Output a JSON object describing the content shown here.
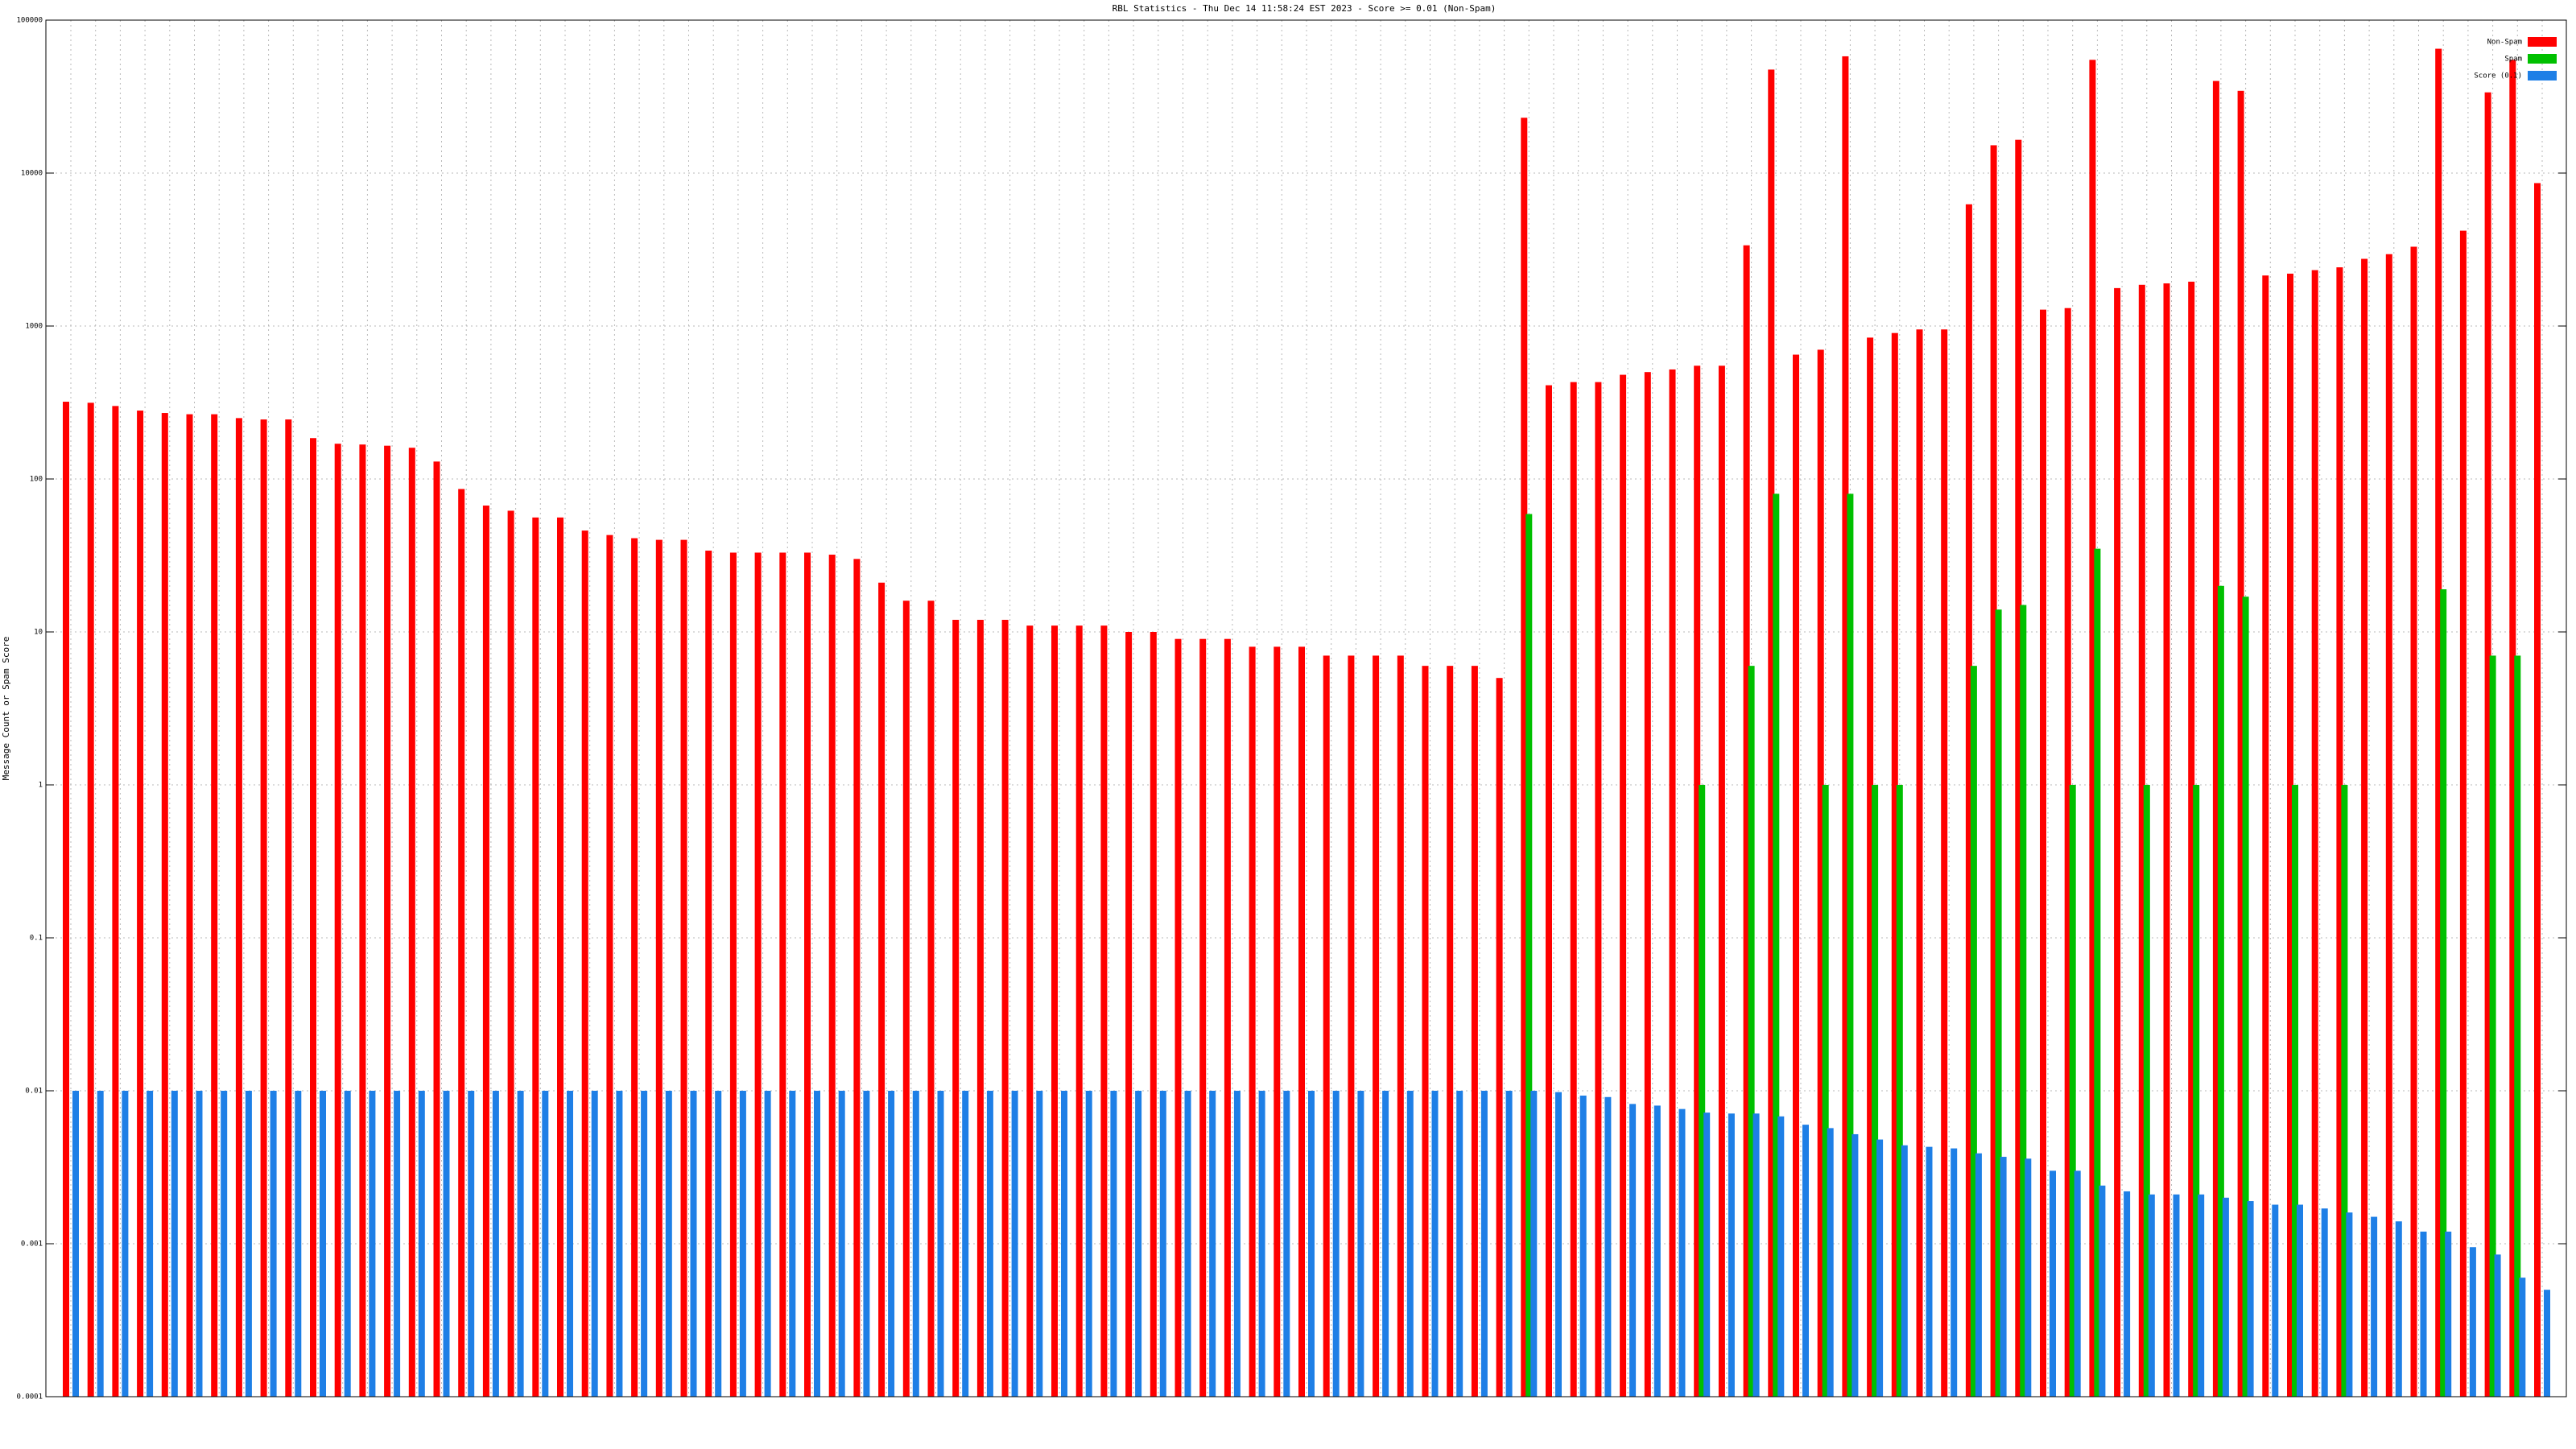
{
  "chart_data": {
    "type": "bar",
    "title": "RBL Statistics - Thu Dec 14 11:58:24 EST 2023 - Score >= 0.01 (Non-Spam)",
    "y_label": "Message Count or Spam Score",
    "log_scale": true,
    "grid": true,
    "legend": "upper right",
    "ylim": [
      0.0001,
      100000
    ],
    "yticks": [
      0.0001,
      0.001,
      0.01,
      0.1,
      1,
      10,
      100,
      1000,
      10000,
      100000
    ],
    "categories": [
      null,
      null,
      null,
      null,
      null,
      null,
      null,
      null,
      null,
      null,
      null,
      null,
      null,
      null,
      null,
      null,
      null,
      null,
      null,
      null,
      null,
      null,
      null,
      null,
      null,
      null,
      null,
      null,
      null,
      null,
      null,
      null,
      null,
      null,
      null,
      null,
      null,
      null,
      null,
      null,
      null,
      null,
      null,
      null,
      null,
      null,
      null,
      null,
      null,
      null,
      null,
      null,
      null,
      null,
      null,
      null,
      null,
      null,
      null,
      null,
      null,
      null,
      null,
      null,
      null,
      null,
      null,
      null,
      null,
      null,
      null,
      null,
      null,
      null,
      null,
      null,
      null,
      null,
      null,
      null,
      null,
      null,
      null,
      null,
      null,
      null,
      null,
      null,
      null,
      null,
      null,
      null,
      null,
      null,
      null,
      null,
      null,
      null,
      null,
      null,
      null
    ],
    "series": [
      {
        "name": "Non-Spam",
        "color": "#ff0000",
        "values": [
          320,
          315,
          300,
          280,
          270,
          265,
          265,
          250,
          245,
          245,
          185,
          170,
          168,
          165,
          160,
          130,
          86,
          67,
          62,
          56,
          56,
          46,
          43,
          41,
          40,
          40,
          34,
          33,
          33,
          33,
          33,
          32,
          30,
          21,
          16,
          16,
          12,
          12,
          12,
          11,
          11,
          11,
          11,
          10,
          10,
          9,
          9,
          9,
          8,
          8,
          8,
          7,
          7,
          7,
          7,
          6,
          6,
          6,
          5,
          23000,
          410,
          430,
          430,
          480,
          500,
          520,
          550,
          550,
          3370,
          47500,
          650,
          700,
          58000,
          840,
          900,
          950,
          950,
          6250,
          15200,
          16500,
          1280,
          1310,
          55000,
          1770,
          1860,
          1900,
          1950,
          40000,
          34500,
          2140,
          2200,
          2320,
          2420,
          2750,
          2950,
          3300,
          65000,
          4200,
          33700,
          55000,
          8600
        ]
      },
      {
        "name": "Spam",
        "color": "#00c000",
        "values": [
          null,
          null,
          null,
          null,
          null,
          null,
          null,
          null,
          null,
          null,
          null,
          null,
          null,
          null,
          null,
          null,
          null,
          null,
          null,
          null,
          null,
          null,
          null,
          null,
          null,
          null,
          null,
          null,
          null,
          null,
          null,
          null,
          null,
          null,
          null,
          null,
          null,
          null,
          null,
          null,
          null,
          null,
          null,
          null,
          null,
          null,
          null,
          null,
          null,
          null,
          null,
          null,
          null,
          null,
          null,
          null,
          null,
          null,
          null,
          59,
          null,
          null,
          null,
          null,
          null,
          null,
          1,
          null,
          6,
          80,
          null,
          1,
          80,
          1,
          1,
          null,
          null,
          6,
          14,
          15,
          null,
          1,
          35,
          null,
          1,
          null,
          1,
          20,
          17,
          null,
          1,
          null,
          1,
          null,
          null,
          null,
          19,
          null,
          7,
          7,
          null
        ]
      },
      {
        "name": "Score (0.1)",
        "color": "#1e7fe6",
        "values": [
          0.01,
          0.01,
          0.01,
          0.01,
          0.01,
          0.01,
          0.01,
          0.01,
          0.01,
          0.01,
          0.01,
          0.01,
          0.01,
          0.01,
          0.01,
          0.01,
          0.01,
          0.01,
          0.01,
          0.01,
          0.01,
          0.01,
          0.01,
          0.01,
          0.01,
          0.01,
          0.01,
          0.01,
          0.01,
          0.01,
          0.01,
          0.01,
          0.01,
          0.01,
          0.01,
          0.01,
          0.01,
          0.01,
          0.01,
          0.01,
          0.01,
          0.01,
          0.01,
          0.01,
          0.01,
          0.01,
          0.01,
          0.01,
          0.01,
          0.01,
          0.01,
          0.01,
          0.01,
          0.01,
          0.01,
          0.01,
          0.01,
          0.01,
          0.01,
          0.01,
          0.0098,
          0.0093,
          0.0091,
          0.0082,
          0.008,
          0.0076,
          0.0072,
          0.0071,
          0.0071,
          0.0068,
          0.006,
          0.0057,
          0.0052,
          0.0048,
          0.0044,
          0.0043,
          0.0042,
          0.0039,
          0.0037,
          0.0036,
          0.003,
          0.003,
          0.0024,
          0.0022,
          0.0021,
          0.0021,
          0.0021,
          0.002,
          0.0019,
          0.0018,
          0.0018,
          0.0017,
          0.0016,
          0.0015,
          0.0014,
          0.0012,
          0.0012,
          0.00095,
          0.00085,
          0.0006,
          0.0005
        ]
      }
    ]
  }
}
